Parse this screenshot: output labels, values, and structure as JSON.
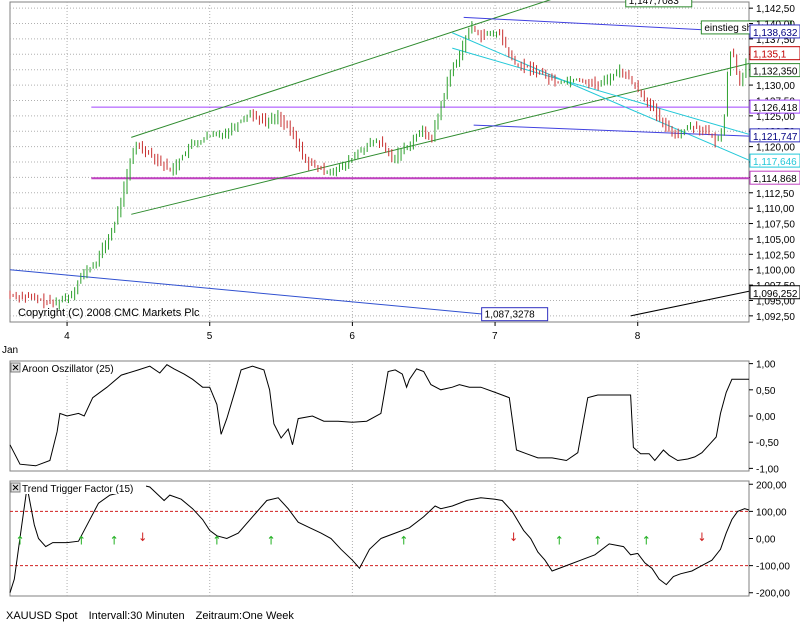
{
  "status_bar": {
    "symbol": "XAUUSD Spot",
    "interval": "Intervall:30 Minuten",
    "timeframe": "Zeitraum:One Week"
  },
  "chart_data": [
    {
      "type": "line",
      "title": "",
      "subtitle": "",
      "ohlc_style": "bars",
      "copyright": "Copyright (C) 2008 CMC Markets Plc",
      "x_month_label": "Jan",
      "x_ticks": [
        {
          "x": 4,
          "label": "4"
        },
        {
          "x": 5,
          "label": "5"
        },
        {
          "x": 6,
          "label": "6"
        },
        {
          "x": 7,
          "label": "7"
        },
        {
          "x": 8,
          "label": "8"
        }
      ],
      "xlim": [
        3.6,
        8.78
      ],
      "ylim": [
        1.0915,
        1.1435
      ],
      "y_ticks": [
        "1,142,50",
        "1,140,00",
        "1,137,50",
        "1,135,00",
        "1,132,50",
        "1,130,00",
        "1,127,50",
        "1,125,00",
        "1,122,50",
        "1,120,00",
        "1,117,50",
        "1,115,00",
        "1,112,50",
        "1,110,00",
        "1,107,50",
        "1,105,00",
        "1,102,50",
        "1,100,00",
        "1,097,50",
        "1,095,00",
        "1,092,50"
      ],
      "y_tick_values": [
        1.1425,
        1.14,
        1.1375,
        1.135,
        1.1325,
        1.13,
        1.1275,
        1.125,
        1.1225,
        1.12,
        1.1175,
        1.115,
        1.1125,
        1.11,
        1.1075,
        1.105,
        1.1025,
        1.1,
        1.0975,
        1.095,
        1.0925
      ],
      "price_series_points": [
        [
          3.6,
          1.096
        ],
        [
          3.75,
          1.0955
        ],
        [
          3.93,
          1.0945
        ],
        [
          4.05,
          1.096
        ],
        [
          4.12,
          1.099
        ],
        [
          4.22,
          1.101
        ],
        [
          4.35,
          1.107
        ],
        [
          4.45,
          1.116
        ],
        [
          4.5,
          1.1205
        ],
        [
          4.6,
          1.119
        ],
        [
          4.75,
          1.116
        ],
        [
          4.88,
          1.12
        ],
        [
          5.0,
          1.1215
        ],
        [
          5.15,
          1.1225
        ],
        [
          5.3,
          1.1255
        ],
        [
          5.42,
          1.124
        ],
        [
          5.5,
          1.125
        ],
        [
          5.6,
          1.122
        ],
        [
          5.7,
          1.1175
        ],
        [
          5.82,
          1.116
        ],
        [
          5.95,
          1.1165
        ],
        [
          6.08,
          1.1195
        ],
        [
          6.2,
          1.121
        ],
        [
          6.3,
          1.118
        ],
        [
          6.4,
          1.12
        ],
        [
          6.5,
          1.1225
        ],
        [
          6.58,
          1.1215
        ],
        [
          6.7,
          1.1315
        ],
        [
          6.78,
          1.1355
        ],
        [
          6.85,
          1.1395
        ],
        [
          6.93,
          1.138
        ],
        [
          7.05,
          1.1385
        ],
        [
          7.15,
          1.1335
        ],
        [
          7.3,
          1.1325
        ],
        [
          7.45,
          1.1305
        ],
        [
          7.6,
          1.131
        ],
        [
          7.75,
          1.13
        ],
        [
          7.9,
          1.1325
        ],
        [
          8.0,
          1.13
        ],
        [
          8.1,
          1.127
        ],
        [
          8.2,
          1.1235
        ],
        [
          8.3,
          1.122
        ],
        [
          8.4,
          1.1235
        ],
        [
          8.5,
          1.1225
        ],
        [
          8.58,
          1.1205
        ],
        [
          8.63,
          1.125
        ],
        [
          8.66,
          1.1355
        ],
        [
          8.7,
          1.1345
        ],
        [
          8.73,
          1.13
        ],
        [
          8.78,
          1.1335
        ]
      ],
      "horizontal_lines": [
        {
          "y": 1.126418,
          "color": "#a040ff"
        },
        {
          "y": 1.114868,
          "color": "#c040c0"
        }
      ],
      "trend_lines": [
        {
          "x1": 4.45,
          "y1": 1.1215,
          "x2": 7.93,
          "y2": 1.148,
          "color": "#2e8b2e"
        },
        {
          "x1": 4.45,
          "y1": 1.109,
          "x2": 8.78,
          "y2": 1.1335,
          "color": "#2e8b2e"
        },
        {
          "x1": 6.7,
          "y1": 1.1385,
          "x2": 8.78,
          "y2": 1.1178,
          "color": "#22c8d8"
        },
        {
          "x1": 6.7,
          "y1": 1.136,
          "x2": 8.78,
          "y2": 1.122,
          "color": "#22c8d8"
        },
        {
          "x1": 6.78,
          "y1": 1.141,
          "x2": 8.78,
          "y2": 1.1386,
          "color": "#4040e0"
        },
        {
          "x1": 6.85,
          "y1": 1.1235,
          "x2": 8.78,
          "y2": 1.1217,
          "color": "#4040e0"
        },
        {
          "x1": 3.6,
          "y1": 1.1,
          "x2": 7.05,
          "y2": 1.0925,
          "color": "#3050d0"
        },
        {
          "x1": 7.95,
          "y1": 1.0925,
          "x2": 8.78,
          "y2": 1.0965,
          "color": "#000000"
        }
      ],
      "price_labels": [
        {
          "text": "1,138,632",
          "y": 1.138632,
          "border": "#3030c0",
          "color": "#000080",
          "bg": "#ffffff"
        },
        {
          "text": "1,135,1",
          "y": 1.1351,
          "border": "#c00000",
          "color": "#c00000",
          "bg": "#ffffff"
        },
        {
          "text": "1,132,350",
          "y": 1.13235,
          "border": "#2e8b2e",
          "color": "#000000",
          "bg": "#ffffff"
        },
        {
          "text": "1,126,418",
          "y": 1.126418,
          "border": "#a040ff",
          "color": "#000000",
          "bg": "#ffffff"
        },
        {
          "text": "1,121,747",
          "y": 1.121747,
          "border": "#3030c0",
          "color": "#000080",
          "bg": "#ffffff"
        },
        {
          "text": "1,117,646",
          "y": 1.117646,
          "border": "#22c8d8",
          "color": "#22c8d8",
          "bg": "#ffffff"
        },
        {
          "text": "1,114,868",
          "y": 1.114868,
          "border": "#c040c0",
          "color": "#000000",
          "bg": "#ffffff"
        },
        {
          "text": "1,096,252",
          "y": 1.096252,
          "border": "#000000",
          "color": "#000000",
          "bg": "#ffffff"
        }
      ],
      "chart_labels": [
        {
          "text": "1,147,7083",
          "x": 7.93,
          "y": 1.1432,
          "border": "#2e8b2e"
        },
        {
          "text": "1,087,3278",
          "x": 6.92,
          "y": 1.0922,
          "border": "#3030c0"
        },
        {
          "text": "einstieg short",
          "x": 8.46,
          "y": 1.1388,
          "border": "#2e8b2e"
        }
      ]
    },
    {
      "type": "line",
      "name": "Aroon Oszillator (25)",
      "ylim": [
        -1.05,
        1.05
      ],
      "y_ticks": [
        "1,00",
        "0,50",
        "0,00",
        "-0,50",
        "-1,00"
      ],
      "y_tick_values": [
        1.0,
        0.5,
        0.0,
        -0.5,
        -1.0
      ],
      "points": [
        [
          3.6,
          -0.55
        ],
        [
          3.67,
          -0.92
        ],
        [
          3.78,
          -0.95
        ],
        [
          3.88,
          -0.85
        ],
        [
          3.93,
          -0.3
        ],
        [
          3.95,
          0.05
        ],
        [
          4.0,
          0.0
        ],
        [
          4.08,
          0.05
        ],
        [
          4.12,
          0.0
        ],
        [
          4.18,
          0.35
        ],
        [
          4.28,
          0.55
        ],
        [
          4.38,
          0.78
        ],
        [
          4.5,
          0.88
        ],
        [
          4.58,
          0.95
        ],
        [
          4.65,
          0.82
        ],
        [
          4.7,
          0.98
        ],
        [
          4.75,
          0.9
        ],
        [
          4.82,
          0.8
        ],
        [
          4.88,
          0.7
        ],
        [
          4.95,
          0.55
        ],
        [
          5.0,
          0.55
        ],
        [
          5.05,
          0.22
        ],
        [
          5.08,
          -0.35
        ],
        [
          5.12,
          -0.05
        ],
        [
          5.18,
          0.5
        ],
        [
          5.22,
          0.88
        ],
        [
          5.3,
          0.95
        ],
        [
          5.38,
          0.88
        ],
        [
          5.42,
          0.5
        ],
        [
          5.45,
          -0.15
        ],
        [
          5.5,
          -0.42
        ],
        [
          5.55,
          -0.25
        ],
        [
          5.58,
          -0.55
        ],
        [
          5.62,
          -0.05
        ],
        [
          5.72,
          0.0
        ],
        [
          5.8,
          -0.1
        ],
        [
          5.9,
          -0.1
        ],
        [
          6.0,
          -0.12
        ],
        [
          6.1,
          -0.1
        ],
        [
          6.2,
          0.05
        ],
        [
          6.25,
          0.85
        ],
        [
          6.3,
          0.88
        ],
        [
          6.35,
          0.8
        ],
        [
          6.38,
          0.55
        ],
        [
          6.4,
          0.7
        ],
        [
          6.45,
          0.9
        ],
        [
          6.5,
          0.85
        ],
        [
          6.55,
          0.6
        ],
        [
          6.62,
          0.5
        ],
        [
          6.7,
          0.55
        ],
        [
          6.75,
          0.6
        ],
        [
          6.82,
          0.55
        ],
        [
          6.9,
          0.55
        ],
        [
          7.0,
          0.45
        ],
        [
          7.1,
          0.35
        ],
        [
          7.15,
          -0.65
        ],
        [
          7.22,
          -0.72
        ],
        [
          7.3,
          -0.8
        ],
        [
          7.4,
          -0.8
        ],
        [
          7.5,
          -0.85
        ],
        [
          7.58,
          -0.7
        ],
        [
          7.62,
          -0.1
        ],
        [
          7.65,
          0.35
        ],
        [
          7.72,
          0.4
        ],
        [
          7.8,
          0.4
        ],
        [
          7.9,
          0.4
        ],
        [
          7.95,
          0.4
        ],
        [
          7.97,
          -0.6
        ],
        [
          8.02,
          -0.72
        ],
        [
          8.08,
          -0.72
        ],
        [
          8.12,
          -0.85
        ],
        [
          8.18,
          -0.65
        ],
        [
          8.22,
          -0.75
        ],
        [
          8.28,
          -0.85
        ],
        [
          8.35,
          -0.82
        ],
        [
          8.4,
          -0.78
        ],
        [
          8.45,
          -0.7
        ],
        [
          8.5,
          -0.55
        ],
        [
          8.55,
          -0.4
        ],
        [
          8.58,
          0.05
        ],
        [
          8.62,
          0.45
        ],
        [
          8.66,
          0.7
        ],
        [
          8.78,
          0.7
        ]
      ]
    },
    {
      "type": "line",
      "name": "Trend Trigger Factor (15)",
      "ylim": [
        -212,
        212
      ],
      "y_ticks": [
        "200,00",
        "100,00",
        "0,00",
        "-100,00",
        "-200,00"
      ],
      "y_tick_values": [
        200,
        100,
        0,
        -100,
        -200
      ],
      "reference_lines": [
        100,
        -100
      ],
      "points": [
        [
          3.6,
          -200
        ],
        [
          3.63,
          -150
        ],
        [
          3.68,
          40
        ],
        [
          3.72,
          190
        ],
        [
          3.77,
          50
        ],
        [
          3.8,
          0
        ],
        [
          3.85,
          -30
        ],
        [
          3.9,
          -15
        ],
        [
          3.95,
          -15
        ],
        [
          4.0,
          -15
        ],
        [
          4.08,
          -10
        ],
        [
          4.15,
          60
        ],
        [
          4.22,
          130
        ],
        [
          4.3,
          160
        ],
        [
          4.38,
          170
        ],
        [
          4.45,
          190
        ],
        [
          4.5,
          200
        ],
        [
          4.58,
          190
        ],
        [
          4.62,
          170
        ],
        [
          4.68,
          140
        ],
        [
          4.72,
          160
        ],
        [
          4.8,
          145
        ],
        [
          4.88,
          110
        ],
        [
          4.95,
          70
        ],
        [
          5.0,
          30
        ],
        [
          5.05,
          10
        ],
        [
          5.12,
          0
        ],
        [
          5.2,
          20
        ],
        [
          5.3,
          80
        ],
        [
          5.4,
          140
        ],
        [
          5.48,
          150
        ],
        [
          5.55,
          110
        ],
        [
          5.62,
          60
        ],
        [
          5.7,
          40
        ],
        [
          5.78,
          20
        ],
        [
          5.85,
          0
        ],
        [
          5.92,
          -40
        ],
        [
          6.0,
          -80
        ],
        [
          6.05,
          -110
        ],
        [
          6.12,
          -40
        ],
        [
          6.2,
          0
        ],
        [
          6.3,
          20
        ],
        [
          6.4,
          40
        ],
        [
          6.5,
          80
        ],
        [
          6.58,
          120
        ],
        [
          6.62,
          110
        ],
        [
          6.7,
          120
        ],
        [
          6.8,
          140
        ],
        [
          6.9,
          150
        ],
        [
          7.0,
          145
        ],
        [
          7.05,
          140
        ],
        [
          7.12,
          100
        ],
        [
          7.2,
          30
        ],
        [
          7.25,
          0
        ],
        [
          7.3,
          -50
        ],
        [
          7.35,
          -80
        ],
        [
          7.4,
          -120
        ],
        [
          7.5,
          -100
        ],
        [
          7.6,
          -80
        ],
        [
          7.7,
          -60
        ],
        [
          7.8,
          -20
        ],
        [
          7.9,
          -30
        ],
        [
          7.95,
          -60
        ],
        [
          8.0,
          -55
        ],
        [
          8.05,
          -90
        ],
        [
          8.1,
          -110
        ],
        [
          8.15,
          -150
        ],
        [
          8.2,
          -170
        ],
        [
          8.25,
          -140
        ],
        [
          8.3,
          -130
        ],
        [
          8.38,
          -120
        ],
        [
          8.45,
          -100
        ],
        [
          8.52,
          -80
        ],
        [
          8.58,
          -40
        ],
        [
          8.62,
          20
        ],
        [
          8.66,
          70
        ],
        [
          8.7,
          100
        ],
        [
          8.75,
          110
        ],
        [
          8.78,
          105
        ]
      ],
      "arrows": [
        {
          "x": 3.67,
          "dir": "up"
        },
        {
          "x": 4.1,
          "dir": "up"
        },
        {
          "x": 4.33,
          "dir": "up"
        },
        {
          "x": 4.53,
          "dir": "down"
        },
        {
          "x": 5.05,
          "dir": "up"
        },
        {
          "x": 5.43,
          "dir": "up"
        },
        {
          "x": 6.36,
          "dir": "up"
        },
        {
          "x": 7.13,
          "dir": "down"
        },
        {
          "x": 7.45,
          "dir": "up"
        },
        {
          "x": 7.72,
          "dir": "up"
        },
        {
          "x": 8.06,
          "dir": "up"
        },
        {
          "x": 8.45,
          "dir": "down"
        }
      ]
    }
  ]
}
